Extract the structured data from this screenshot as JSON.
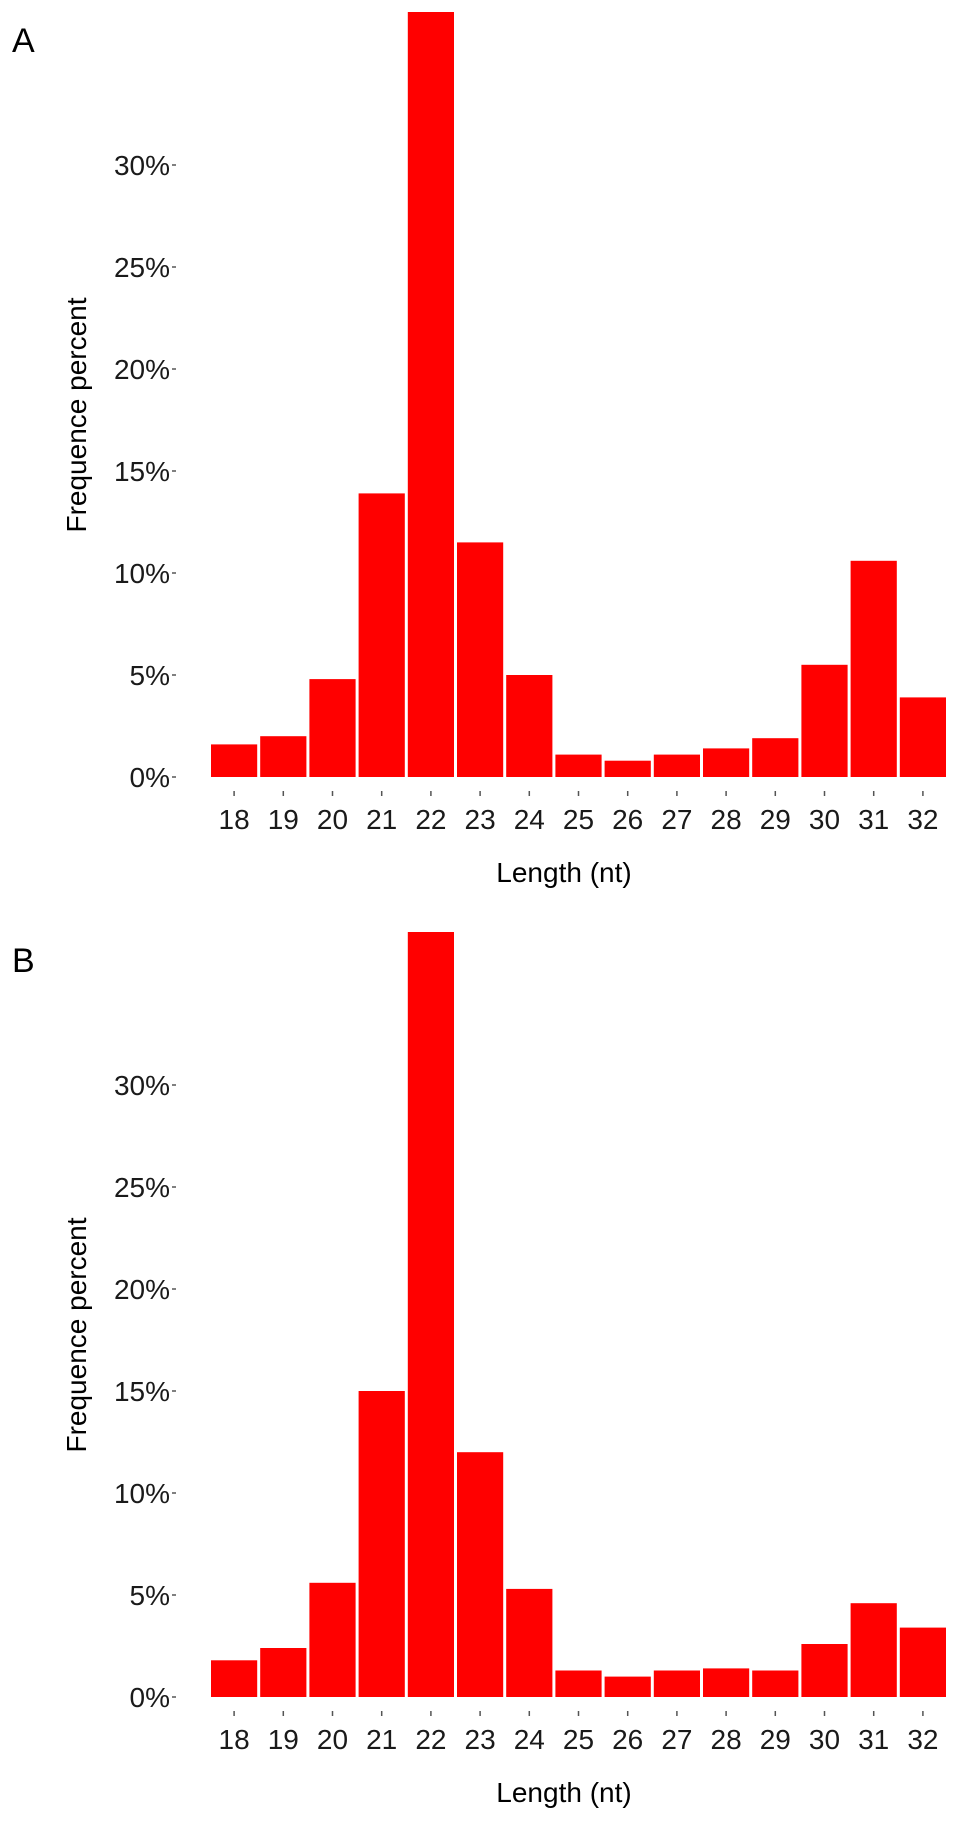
{
  "chart_data": [
    {
      "panel": "A",
      "type": "bar",
      "categories": [
        "18",
        "19",
        "20",
        "21",
        "22",
        "23",
        "24",
        "25",
        "26",
        "27",
        "28",
        "29",
        "30",
        "31",
        "32"
      ],
      "values": [
        1.6,
        2.0,
        4.8,
        13.9,
        37.5,
        11.5,
        5.0,
        1.1,
        0.8,
        1.1,
        1.4,
        1.9,
        5.5,
        10.6,
        3.9
      ],
      "xlabel": "Length (nt)",
      "ylabel": "Frequence percent",
      "ylim": [
        0,
        37.5
      ],
      "yticks": [
        "0%",
        "5%",
        "10%",
        "15%",
        "20%",
        "25%",
        "30%"
      ],
      "ytick_values": [
        0,
        5,
        10,
        15,
        20,
        25,
        30
      ],
      "bar_color": "#ff0000",
      "grid": false,
      "legend": "none"
    },
    {
      "panel": "B",
      "type": "bar",
      "categories": [
        "18",
        "19",
        "20",
        "21",
        "22",
        "23",
        "24",
        "25",
        "26",
        "27",
        "28",
        "29",
        "30",
        "31",
        "32"
      ],
      "values": [
        1.8,
        2.4,
        5.6,
        15.0,
        37.5,
        12.0,
        5.3,
        1.3,
        1.0,
        1.3,
        1.4,
        1.3,
        2.6,
        4.6,
        3.4
      ],
      "xlabel": "Length (nt)",
      "ylabel": "Frequence percent",
      "ylim": [
        0,
        37.5
      ],
      "yticks": [
        "0%",
        "5%",
        "10%",
        "15%",
        "20%",
        "25%",
        "30%"
      ],
      "ytick_values": [
        0,
        5,
        10,
        15,
        20,
        25,
        30
      ],
      "bar_color": "#ff0000",
      "grid": false,
      "legend": "none"
    }
  ]
}
